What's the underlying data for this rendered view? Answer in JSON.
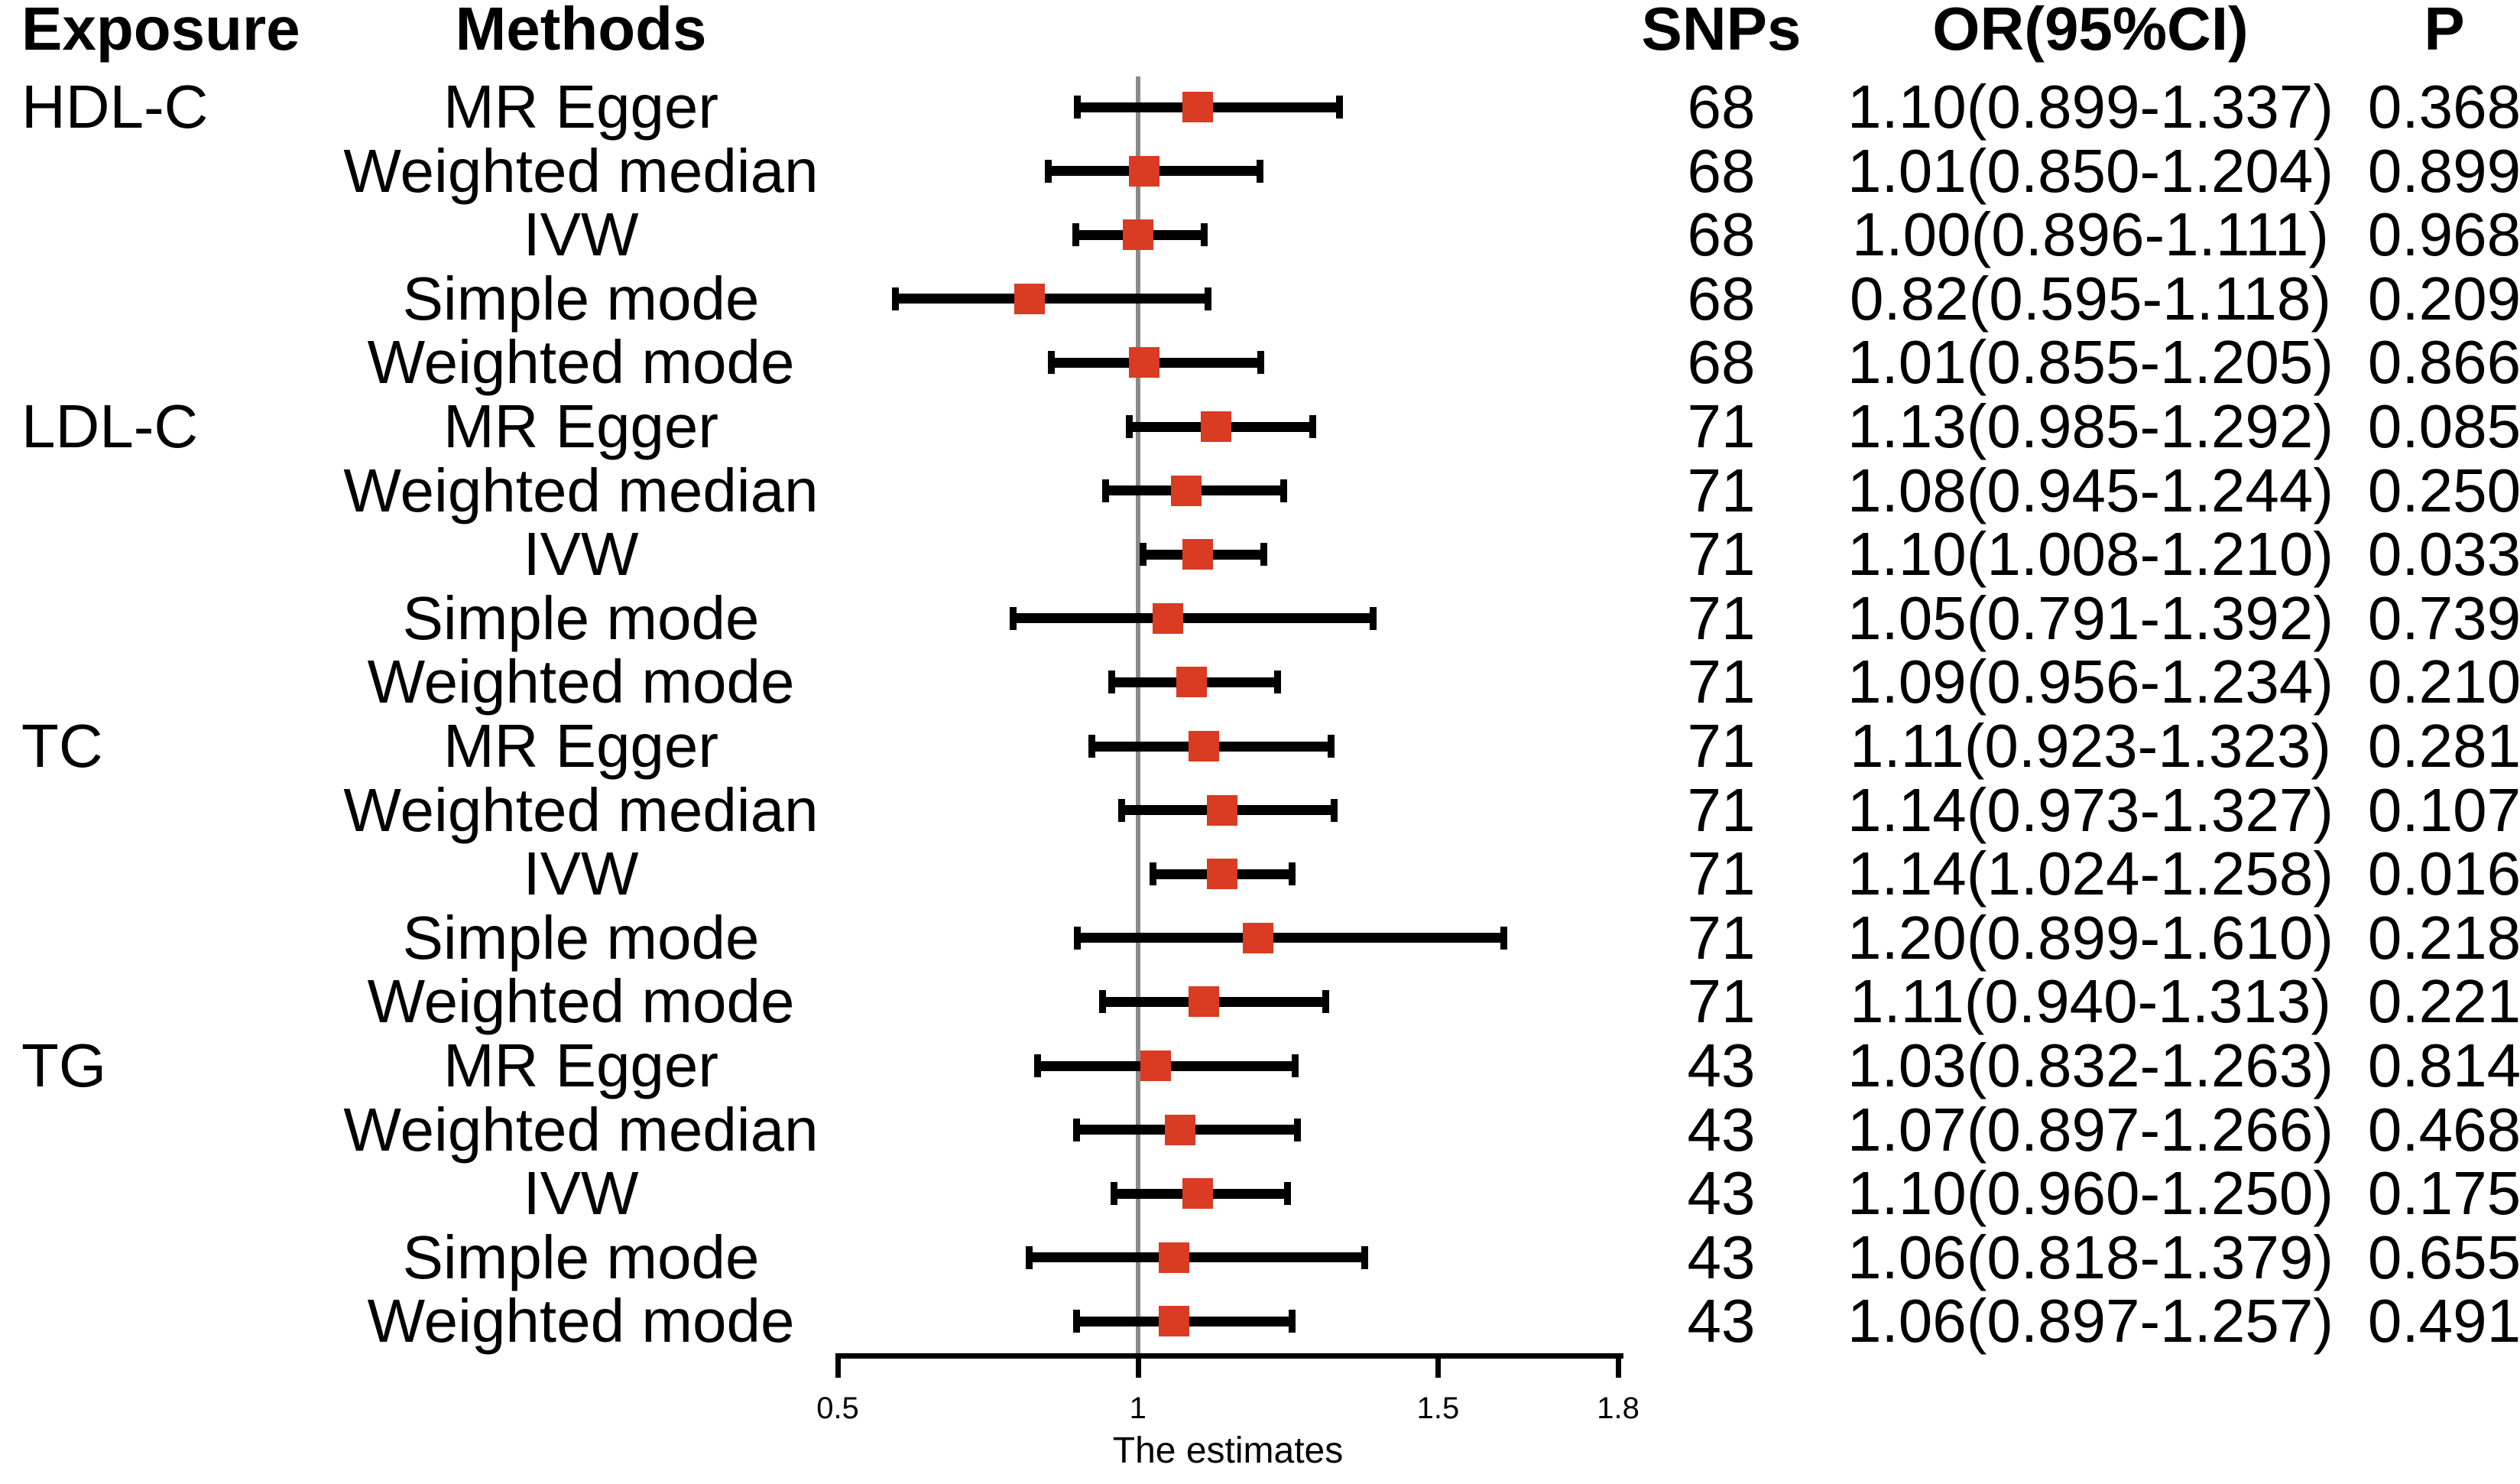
{
  "header": {
    "exposure": "Exposure",
    "methods": "Methods",
    "snps": "SNPs",
    "or_ci": "OR(95%CI)",
    "p": "P"
  },
  "axis": {
    "label": "The estimates",
    "range": [
      0.5,
      1.8
    ],
    "tick_labels": [
      "0.5",
      "1",
      "1.5",
      "1.8"
    ],
    "tick_values": [
      0.5,
      1,
      1.5,
      1.8
    ],
    "reference_value": 1
  },
  "colors": {
    "marker": "#d93b23",
    "bar": "#000000",
    "reference_line": "#8a8a8a",
    "text": "#000000",
    "background": "#ffffff"
  },
  "chart_data": {
    "type": "forest",
    "xlabel": "The estimates",
    "xlim": [
      0.5,
      1.8
    ],
    "x_ticks": [
      0.5,
      1,
      1.5,
      1.8
    ],
    "reference_line": 1,
    "groups": [
      {
        "exposure": "HDL-C",
        "rows": [
          {
            "method": "MR Egger",
            "snps": "68",
            "or": 1.1,
            "ci_low": 0.899,
            "ci_high": 1.337,
            "or_ci": "1.10(0.899-1.337)",
            "p": "0.368"
          },
          {
            "method": "Weighted median",
            "snps": "68",
            "or": 1.01,
            "ci_low": 0.85,
            "ci_high": 1.204,
            "or_ci": "1.01(0.850-1.204)",
            "p": "0.899"
          },
          {
            "method": "IVW",
            "snps": "68",
            "or": 1.0,
            "ci_low": 0.896,
            "ci_high": 1.111,
            "or_ci": "1.00(0.896-1.111)",
            "p": "0.968"
          },
          {
            "method": "Simple mode",
            "snps": "68",
            "or": 0.82,
            "ci_low": 0.595,
            "ci_high": 1.118,
            "or_ci": "0.82(0.595-1.118)",
            "p": "0.209"
          },
          {
            "method": "Weighted mode",
            "snps": "68",
            "or": 1.01,
            "ci_low": 0.855,
            "ci_high": 1.205,
            "or_ci": "1.01(0.855-1.205)",
            "p": "0.866"
          }
        ]
      },
      {
        "exposure": "LDL-C",
        "rows": [
          {
            "method": "MR Egger",
            "snps": "71",
            "or": 1.13,
            "ci_low": 0.985,
            "ci_high": 1.292,
            "or_ci": "1.13(0.985-1.292)",
            "p": "0.085"
          },
          {
            "method": "Weighted median",
            "snps": "71",
            "or": 1.08,
            "ci_low": 0.945,
            "ci_high": 1.244,
            "or_ci": "1.08(0.945-1.244)",
            "p": "0.250"
          },
          {
            "method": "IVW",
            "snps": "71",
            "or": 1.1,
            "ci_low": 1.008,
            "ci_high": 1.21,
            "or_ci": "1.10(1.008-1.210)",
            "p": "0.033"
          },
          {
            "method": "Simple mode",
            "snps": "71",
            "or": 1.05,
            "ci_low": 0.791,
            "ci_high": 1.392,
            "or_ci": "1.05(0.791-1.392)",
            "p": "0.739"
          },
          {
            "method": "Weighted mode",
            "snps": "71",
            "or": 1.09,
            "ci_low": 0.956,
            "ci_high": 1.234,
            "or_ci": "1.09(0.956-1.234)",
            "p": "0.210"
          }
        ]
      },
      {
        "exposure": "TC",
        "rows": [
          {
            "method": "MR Egger",
            "snps": "71",
            "or": 1.11,
            "ci_low": 0.923,
            "ci_high": 1.323,
            "or_ci": "1.11(0.923-1.323)",
            "p": "0.281"
          },
          {
            "method": "Weighted median",
            "snps": "71",
            "or": 1.14,
            "ci_low": 0.973,
            "ci_high": 1.327,
            "or_ci": "1.14(0.973-1.327)",
            "p": "0.107"
          },
          {
            "method": "IVW",
            "snps": "71",
            "or": 1.14,
            "ci_low": 1.024,
            "ci_high": 1.258,
            "or_ci": "1.14(1.024-1.258)",
            "p": "0.016"
          },
          {
            "method": "Simple mode",
            "snps": "71",
            "or": 1.2,
            "ci_low": 0.899,
            "ci_high": 1.61,
            "or_ci": "1.20(0.899-1.610)",
            "p": "0.218"
          },
          {
            "method": "Weighted mode",
            "snps": "71",
            "or": 1.11,
            "ci_low": 0.94,
            "ci_high": 1.313,
            "or_ci": "1.11(0.940-1.313)",
            "p": "0.221"
          }
        ]
      },
      {
        "exposure": "TG",
        "rows": [
          {
            "method": "MR Egger",
            "snps": "43",
            "or": 1.03,
            "ci_low": 0.832,
            "ci_high": 1.263,
            "or_ci": "1.03(0.832-1.263)",
            "p": "0.814"
          },
          {
            "method": "Weighted median",
            "snps": "43",
            "or": 1.07,
            "ci_low": 0.897,
            "ci_high": 1.266,
            "or_ci": "1.07(0.897-1.266)",
            "p": "0.468"
          },
          {
            "method": "IVW",
            "snps": "43",
            "or": 1.1,
            "ci_low": 0.96,
            "ci_high": 1.25,
            "or_ci": "1.10(0.960-1.250)",
            "p": "0.175"
          },
          {
            "method": "Simple mode",
            "snps": "43",
            "or": 1.06,
            "ci_low": 0.818,
            "ci_high": 1.379,
            "or_ci": "1.06(0.818-1.379)",
            "p": "0.655"
          },
          {
            "method": "Weighted mode",
            "snps": "43",
            "or": 1.06,
            "ci_low": 0.897,
            "ci_high": 1.257,
            "or_ci": "1.06(0.897-1.257)",
            "p": "0.491"
          }
        ]
      }
    ]
  }
}
